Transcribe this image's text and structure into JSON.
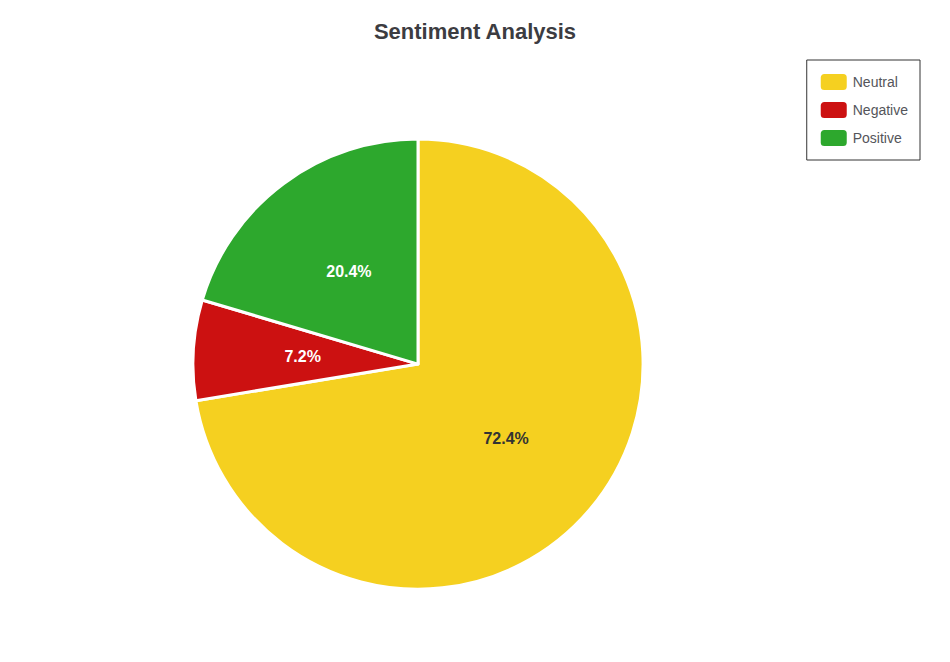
{
  "chart_data": {
    "type": "pie",
    "title": "Sentiment Analysis",
    "categories": [
      "Neutral",
      "Negative",
      "Positive"
    ],
    "values": [
      72.4,
      7.2,
      20.4
    ],
    "value_labels": [
      "72.4%",
      "7.2%",
      "20.4%"
    ],
    "colors": [
      "#f5d020",
      "#cc1111",
      "#2da82d"
    ],
    "data_labels": true,
    "legend": "upper right"
  }
}
